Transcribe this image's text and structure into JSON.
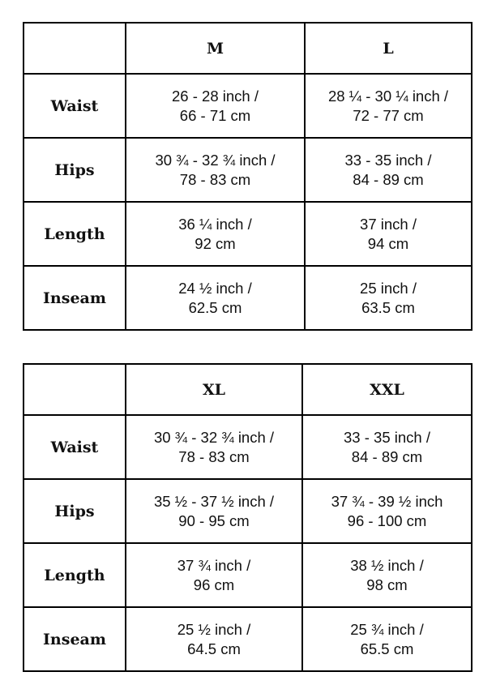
{
  "tables": [
    {
      "sizes": [
        "M",
        "L"
      ],
      "rows": [
        {
          "label": "Waist",
          "cells": [
            [
              "26 - 28 inch /",
              "66 - 71 cm"
            ],
            [
              "28 ¼ - 30 ¼ inch /",
              "72 - 77 cm"
            ]
          ]
        },
        {
          "label": "Hips",
          "cells": [
            [
              "30 ¾ - 32 ¾ inch /",
              "78 - 83 cm"
            ],
            [
              "33 - 35 inch /",
              "84 - 89 cm"
            ]
          ]
        },
        {
          "label": "Length",
          "cells": [
            [
              "36 ¼ inch /",
              "92 cm"
            ],
            [
              "37 inch /",
              "94 cm"
            ]
          ]
        },
        {
          "label": "Inseam",
          "cells": [
            [
              "24 ½ inch /",
              "62.5 cm"
            ],
            [
              "25 inch /",
              "63.5 cm"
            ]
          ]
        }
      ]
    },
    {
      "sizes": [
        "XL",
        "XXL"
      ],
      "rows": [
        {
          "label": "Waist",
          "cells": [
            [
              "30 ¾ - 32 ¾ inch /",
              "78 - 83 cm"
            ],
            [
              "33 - 35 inch /",
              "84 - 89 cm"
            ]
          ]
        },
        {
          "label": "Hips",
          "cells": [
            [
              "35 ½ - 37 ½ inch /",
              "90 - 95 cm"
            ],
            [
              "37 ¾ - 39 ½ inch",
              "96 - 100 cm"
            ]
          ]
        },
        {
          "label": "Length",
          "cells": [
            [
              "37 ¾ inch /",
              "96 cm"
            ],
            [
              "38 ½ inch /",
              "98 cm"
            ]
          ]
        },
        {
          "label": "Inseam",
          "cells": [
            [
              "25 ½ inch /",
              "64.5 cm"
            ],
            [
              "25 ¾ inch /",
              "65.5 cm"
            ]
          ]
        }
      ]
    }
  ]
}
